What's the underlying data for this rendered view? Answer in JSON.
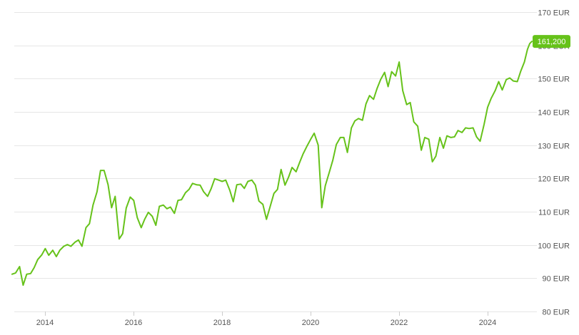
{
  "chart_data": {
    "type": "line",
    "title": "",
    "xlabel": "",
    "ylabel": "",
    "currency_suffix": "EUR",
    "ylim": [
      80,
      170
    ],
    "xlim": [
      2013.25,
      2024.9
    ],
    "y_ticks": [
      {
        "value": 80,
        "label": "80 EUR"
      },
      {
        "value": 90,
        "label": "90 EUR"
      },
      {
        "value": 100,
        "label": "100 EUR"
      },
      {
        "value": 110,
        "label": "110 EUR"
      },
      {
        "value": 120,
        "label": "120 EUR"
      },
      {
        "value": 130,
        "label": "130 EUR"
      },
      {
        "value": 140,
        "label": "140 EUR"
      },
      {
        "value": 150,
        "label": "150 EUR"
      },
      {
        "value": 160,
        "label": "160 EUR"
      },
      {
        "value": 170,
        "label": "170 EUR"
      }
    ],
    "x_ticks": [
      {
        "value": 2014,
        "label": "2014"
      },
      {
        "value": 2016,
        "label": "2016"
      },
      {
        "value": 2018,
        "label": "2018"
      },
      {
        "value": 2020,
        "label": "2020"
      },
      {
        "value": 2022,
        "label": "2022"
      },
      {
        "value": 2024,
        "label": "2024"
      }
    ],
    "grid": true,
    "legend": "none",
    "line_color": "#66c21a",
    "badge_color": "#66c21a",
    "last_value_label": "161,200",
    "last_value": 161.2,
    "series": [
      {
        "points": [
          [
            2013.25,
            91.2
          ],
          [
            2013.33,
            91.6
          ],
          [
            2013.42,
            93.5
          ],
          [
            2013.5,
            87.9
          ],
          [
            2013.58,
            91.2
          ],
          [
            2013.67,
            91.4
          ],
          [
            2013.75,
            93.2
          ],
          [
            2013.83,
            95.6
          ],
          [
            2013.92,
            97.0
          ],
          [
            2014.0,
            98.9
          ],
          [
            2014.08,
            96.9
          ],
          [
            2014.17,
            98.4
          ],
          [
            2014.25,
            96.5
          ],
          [
            2014.33,
            98.4
          ],
          [
            2014.42,
            99.6
          ],
          [
            2014.5,
            100.1
          ],
          [
            2014.58,
            99.6
          ],
          [
            2014.67,
            100.8
          ],
          [
            2014.75,
            101.5
          ],
          [
            2014.83,
            99.6
          ],
          [
            2014.92,
            105.2
          ],
          [
            2015.0,
            106.4
          ],
          [
            2015.08,
            112.0
          ],
          [
            2015.17,
            116.0
          ],
          [
            2015.25,
            122.4
          ],
          [
            2015.33,
            122.4
          ],
          [
            2015.42,
            118.1
          ],
          [
            2015.5,
            111.2
          ],
          [
            2015.58,
            114.6
          ],
          [
            2015.67,
            101.8
          ],
          [
            2015.75,
            103.4
          ],
          [
            2015.83,
            111.1
          ],
          [
            2015.92,
            114.4
          ],
          [
            2016.0,
            113.4
          ],
          [
            2016.08,
            108.2
          ],
          [
            2016.17,
            105.2
          ],
          [
            2016.25,
            107.8
          ],
          [
            2016.33,
            109.8
          ],
          [
            2016.42,
            108.6
          ],
          [
            2016.5,
            105.9
          ],
          [
            2016.58,
            111.6
          ],
          [
            2016.67,
            112.0
          ],
          [
            2016.75,
            110.9
          ],
          [
            2016.83,
            111.4
          ],
          [
            2016.92,
            109.5
          ],
          [
            2017.0,
            113.4
          ],
          [
            2017.08,
            113.6
          ],
          [
            2017.17,
            115.7
          ],
          [
            2017.25,
            116.7
          ],
          [
            2017.33,
            118.5
          ],
          [
            2017.42,
            118.1
          ],
          [
            2017.5,
            118.0
          ],
          [
            2017.58,
            116.0
          ],
          [
            2017.67,
            114.6
          ],
          [
            2017.75,
            116.9
          ],
          [
            2017.83,
            119.9
          ],
          [
            2017.92,
            119.5
          ],
          [
            2018.0,
            119.1
          ],
          [
            2018.08,
            119.5
          ],
          [
            2018.17,
            116.5
          ],
          [
            2018.25,
            113.0
          ],
          [
            2018.33,
            118.1
          ],
          [
            2018.42,
            118.3
          ],
          [
            2018.5,
            117.0
          ],
          [
            2018.58,
            119.1
          ],
          [
            2018.67,
            119.5
          ],
          [
            2018.75,
            118.0
          ],
          [
            2018.83,
            113.2
          ],
          [
            2018.92,
            112.2
          ],
          [
            2019.0,
            107.7
          ],
          [
            2019.08,
            111.4
          ],
          [
            2019.17,
            115.5
          ],
          [
            2019.25,
            116.7
          ],
          [
            2019.33,
            122.7
          ],
          [
            2019.42,
            118.0
          ],
          [
            2019.5,
            120.4
          ],
          [
            2019.58,
            123.3
          ],
          [
            2019.67,
            122.0
          ],
          [
            2019.75,
            124.8
          ],
          [
            2019.83,
            127.4
          ],
          [
            2019.92,
            129.8
          ],
          [
            2020.0,
            131.8
          ],
          [
            2020.08,
            133.6
          ],
          [
            2020.17,
            130.0
          ],
          [
            2020.25,
            111.2
          ],
          [
            2020.33,
            117.8
          ],
          [
            2020.42,
            121.8
          ],
          [
            2020.5,
            125.5
          ],
          [
            2020.58,
            130.2
          ],
          [
            2020.67,
            132.3
          ],
          [
            2020.75,
            132.3
          ],
          [
            2020.83,
            127.8
          ],
          [
            2020.92,
            135.2
          ],
          [
            2021.0,
            137.3
          ],
          [
            2021.08,
            138.0
          ],
          [
            2021.17,
            137.5
          ],
          [
            2021.25,
            142.4
          ],
          [
            2021.33,
            144.9
          ],
          [
            2021.42,
            143.8
          ],
          [
            2021.5,
            147.0
          ],
          [
            2021.58,
            149.7
          ],
          [
            2021.67,
            151.9
          ],
          [
            2021.75,
            147.6
          ],
          [
            2021.83,
            152.1
          ],
          [
            2021.92,
            150.8
          ],
          [
            2022.0,
            155.0
          ],
          [
            2022.08,
            146.4
          ],
          [
            2022.17,
            142.2
          ],
          [
            2022.25,
            142.8
          ],
          [
            2022.33,
            137.0
          ],
          [
            2022.42,
            135.7
          ],
          [
            2022.5,
            128.5
          ],
          [
            2022.58,
            132.3
          ],
          [
            2022.67,
            131.8
          ],
          [
            2022.75,
            125.0
          ],
          [
            2022.83,
            126.7
          ],
          [
            2022.92,
            132.3
          ],
          [
            2023.0,
            129.1
          ],
          [
            2023.08,
            132.8
          ],
          [
            2023.17,
            132.3
          ],
          [
            2023.25,
            132.5
          ],
          [
            2023.33,
            134.4
          ],
          [
            2023.42,
            133.8
          ],
          [
            2023.5,
            135.2
          ],
          [
            2023.58,
            135.0
          ],
          [
            2023.67,
            135.2
          ],
          [
            2023.75,
            132.5
          ],
          [
            2023.83,
            131.2
          ],
          [
            2023.92,
            136.3
          ],
          [
            2024.0,
            141.4
          ],
          [
            2024.08,
            144.1
          ],
          [
            2024.17,
            146.4
          ],
          [
            2024.25,
            149.1
          ],
          [
            2024.33,
            146.6
          ],
          [
            2024.42,
            149.7
          ],
          [
            2024.5,
            150.2
          ],
          [
            2024.58,
            149.3
          ],
          [
            2024.67,
            149.1
          ],
          [
            2024.75,
            152.3
          ],
          [
            2024.83,
            155.0
          ],
          [
            2024.9,
            158.8
          ],
          [
            2024.95,
            160.5
          ],
          [
            2025.0,
            161.2
          ]
        ]
      }
    ]
  }
}
